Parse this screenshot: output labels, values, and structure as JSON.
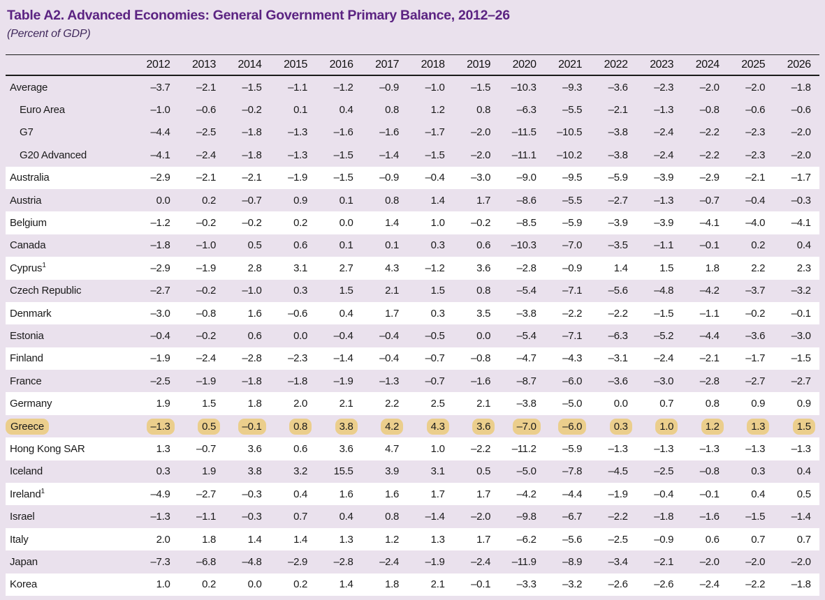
{
  "colors": {
    "title_purple": "#5B2382",
    "subtitle_purple": "#40295C",
    "page_lavender": "#EAE1ED",
    "row_white": "#FFFFFF",
    "greece_highlight_tan": "#EBCE8C",
    "rule_black": "#1A1A1A"
  },
  "table": {
    "title": "Table A2. Advanced Economies: General Government Primary Balance, 2012–26",
    "subtitle": "(Percent of GDP)",
    "years": [
      "2012",
      "2013",
      "2014",
      "2015",
      "2016",
      "2017",
      "2018",
      "2019",
      "2020",
      "2021",
      "2022",
      "2023",
      "2024",
      "2025",
      "2026"
    ],
    "rows": [
      {
        "label": "Average",
        "shade": "lavender",
        "indent": false,
        "highlight": false,
        "values": [
          "–3.7",
          "–2.1",
          "–1.5",
          "–1.1",
          "–1.2",
          "–0.9",
          "–1.0",
          "–1.5",
          "–10.3",
          "–9.3",
          "–3.6",
          "–2.3",
          "–2.0",
          "–2.0",
          "–1.8"
        ]
      },
      {
        "label": "Euro Area",
        "shade": "lavender",
        "indent": true,
        "highlight": false,
        "values": [
          "–1.0",
          "–0.6",
          "–0.2",
          "0.1",
          "0.4",
          "0.8",
          "1.2",
          "0.8",
          "–6.3",
          "–5.5",
          "–2.1",
          "–1.3",
          "–0.8",
          "–0.6",
          "–0.6"
        ]
      },
      {
        "label": "G7",
        "shade": "lavender",
        "indent": true,
        "highlight": false,
        "values": [
          "–4.4",
          "–2.5",
          "–1.8",
          "–1.3",
          "–1.6",
          "–1.6",
          "–1.7",
          "–2.0",
          "–11.5",
          "–10.5",
          "–3.8",
          "–2.4",
          "–2.2",
          "–2.3",
          "–2.0"
        ]
      },
      {
        "label": "G20 Advanced",
        "shade": "lavender",
        "indent": true,
        "highlight": false,
        "values": [
          "–4.1",
          "–2.4",
          "–1.8",
          "–1.3",
          "–1.5",
          "–1.4",
          "–1.5",
          "–2.0",
          "–11.1",
          "–10.2",
          "–3.8",
          "–2.4",
          "–2.2",
          "–2.3",
          "–2.0"
        ]
      },
      {
        "label": "Australia",
        "shade": "white",
        "indent": false,
        "highlight": false,
        "values": [
          "–2.9",
          "–2.1",
          "–2.1",
          "–1.9",
          "–1.5",
          "–0.9",
          "–0.4",
          "–3.0",
          "–9.0",
          "–9.5",
          "–5.9",
          "–3.9",
          "–2.9",
          "–2.1",
          "–1.7"
        ]
      },
      {
        "label": "Austria",
        "shade": "lavender",
        "indent": false,
        "highlight": false,
        "values": [
          "0.0",
          "0.2",
          "–0.7",
          "0.9",
          "0.1",
          "0.8",
          "1.4",
          "1.7",
          "–8.6",
          "–5.5",
          "–2.7",
          "–1.3",
          "–0.7",
          "–0.4",
          "–0.3"
        ]
      },
      {
        "label": "Belgium",
        "shade": "white",
        "indent": false,
        "highlight": false,
        "values": [
          "–1.2",
          "–0.2",
          "–0.2",
          "0.2",
          "0.0",
          "1.4",
          "1.0",
          "–0.2",
          "–8.5",
          "–5.9",
          "–3.9",
          "–3.9",
          "–4.1",
          "–4.0",
          "–4.1"
        ]
      },
      {
        "label": "Canada",
        "shade": "lavender",
        "indent": false,
        "highlight": false,
        "values": [
          "–1.8",
          "–1.0",
          "0.5",
          "0.6",
          "0.1",
          "0.1",
          "0.3",
          "0.6",
          "–10.3",
          "–7.0",
          "–3.5",
          "–1.1",
          "–0.1",
          "0.2",
          "0.4"
        ]
      },
      {
        "label": "Cyprus",
        "sup": "1",
        "shade": "white",
        "indent": false,
        "highlight": false,
        "values": [
          "–2.9",
          "–1.9",
          "2.8",
          "3.1",
          "2.7",
          "4.3",
          "–1.2",
          "3.6",
          "–2.8",
          "–0.9",
          "1.4",
          "1.5",
          "1.8",
          "2.2",
          "2.3"
        ]
      },
      {
        "label": "Czech Republic",
        "shade": "lavender",
        "indent": false,
        "highlight": false,
        "values": [
          "–2.7",
          "–0.2",
          "–1.0",
          "0.3",
          "1.5",
          "2.1",
          "1.5",
          "0.8",
          "–5.4",
          "–7.1",
          "–5.6",
          "–4.8",
          "–4.2",
          "–3.7",
          "–3.2"
        ]
      },
      {
        "label": "Denmark",
        "shade": "white",
        "indent": false,
        "highlight": false,
        "values": [
          "–3.0",
          "–0.8",
          "1.6",
          "–0.6",
          "0.4",
          "1.7",
          "0.3",
          "3.5",
          "–3.8",
          "–2.2",
          "–2.2",
          "–1.5",
          "–1.1",
          "–0.2",
          "–0.1"
        ]
      },
      {
        "label": "Estonia",
        "shade": "lavender",
        "indent": false,
        "highlight": false,
        "values": [
          "–0.4",
          "–0.2",
          "0.6",
          "0.0",
          "–0.4",
          "–0.4",
          "–0.5",
          "0.0",
          "–5.4",
          "–7.1",
          "–6.3",
          "–5.2",
          "–4.4",
          "–3.6",
          "–3.0"
        ]
      },
      {
        "label": "Finland",
        "shade": "white",
        "indent": false,
        "highlight": false,
        "values": [
          "–1.9",
          "–2.4",
          "–2.8",
          "–2.3",
          "–1.4",
          "–0.4",
          "–0.7",
          "–0.8",
          "–4.7",
          "–4.3",
          "–3.1",
          "–2.4",
          "–2.1",
          "–1.7",
          "–1.5"
        ]
      },
      {
        "label": "France",
        "shade": "lavender",
        "indent": false,
        "highlight": false,
        "values": [
          "–2.5",
          "–1.9",
          "–1.8",
          "–1.8",
          "–1.9",
          "–1.3",
          "–0.7",
          "–1.6",
          "–8.7",
          "–6.0",
          "–3.6",
          "–3.0",
          "–2.8",
          "–2.7",
          "–2.7"
        ]
      },
      {
        "label": "Germany",
        "shade": "white",
        "indent": false,
        "highlight": false,
        "values": [
          "1.9",
          "1.5",
          "1.8",
          "2.0",
          "2.1",
          "2.2",
          "2.5",
          "2.1",
          "–3.8",
          "–5.0",
          "0.0",
          "0.7",
          "0.8",
          "0.9",
          "0.9"
        ]
      },
      {
        "label": "Greece",
        "shade": "lavender",
        "indent": false,
        "highlight": true,
        "values": [
          "–1.3",
          "0.5",
          "–0.1",
          "0.8",
          "3.8",
          "4.2",
          "4.3",
          "3.6",
          "–7.0",
          "–6.0",
          "0.3",
          "1.0",
          "1.2",
          "1.3",
          "1.5"
        ]
      },
      {
        "label": "Hong Kong SAR",
        "shade": "white",
        "indent": false,
        "highlight": false,
        "values": [
          "1.3",
          "–0.7",
          "3.6",
          "0.6",
          "3.6",
          "4.7",
          "1.0",
          "–2.2",
          "–11.2",
          "–5.9",
          "–1.3",
          "–1.3",
          "–1.3",
          "–1.3",
          "–1.3"
        ]
      },
      {
        "label": "Iceland",
        "shade": "lavender",
        "indent": false,
        "highlight": false,
        "values": [
          "0.3",
          "1.9",
          "3.8",
          "3.2",
          "15.5",
          "3.9",
          "3.1",
          "0.5",
          "–5.0",
          "–7.8",
          "–4.5",
          "–2.5",
          "–0.8",
          "0.3",
          "0.4"
        ]
      },
      {
        "label": "Ireland",
        "sup": "1",
        "shade": "white",
        "indent": false,
        "highlight": false,
        "values": [
          "–4.9",
          "–2.7",
          "–0.3",
          "0.4",
          "1.6",
          "1.6",
          "1.7",
          "1.7",
          "–4.2",
          "–4.4",
          "–1.9",
          "–0.4",
          "–0.1",
          "0.4",
          "0.5"
        ]
      },
      {
        "label": "Israel",
        "shade": "lavender",
        "indent": false,
        "highlight": false,
        "values": [
          "–1.3",
          "–1.1",
          "–0.3",
          "0.7",
          "0.4",
          "0.8",
          "–1.4",
          "–2.0",
          "–9.8",
          "–6.7",
          "–2.2",
          "–1.8",
          "–1.6",
          "–1.5",
          "–1.4"
        ]
      },
      {
        "label": "Italy",
        "shade": "white",
        "indent": false,
        "highlight": false,
        "values": [
          "2.0",
          "1.8",
          "1.4",
          "1.4",
          "1.3",
          "1.2",
          "1.3",
          "1.7",
          "–6.2",
          "–5.6",
          "–2.5",
          "–0.9",
          "0.6",
          "0.7",
          "0.7"
        ]
      },
      {
        "label": "Japan",
        "shade": "lavender",
        "indent": false,
        "highlight": false,
        "values": [
          "–7.3",
          "–6.8",
          "–4.8",
          "–2.9",
          "–2.8",
          "–2.4",
          "–1.9",
          "–2.4",
          "–11.9",
          "–8.9",
          "–3.4",
          "–2.1",
          "–2.0",
          "–2.0",
          "–2.0"
        ]
      },
      {
        "label": "Korea",
        "shade": "white",
        "indent": false,
        "highlight": false,
        "values": [
          "1.0",
          "0.2",
          "0.0",
          "0.2",
          "1.4",
          "1.8",
          "2.1",
          "–0.1",
          "–3.3",
          "–3.2",
          "–2.6",
          "–2.6",
          "–2.4",
          "–2.2",
          "–1.8"
        ]
      }
    ]
  }
}
